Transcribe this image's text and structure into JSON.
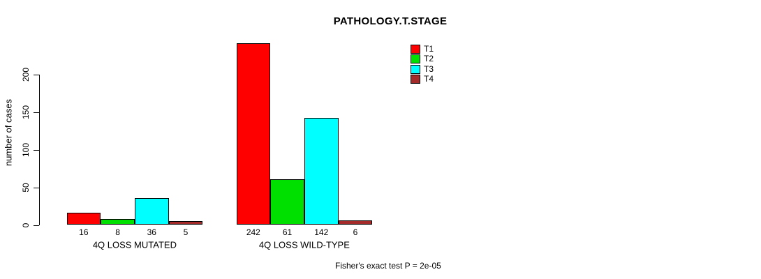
{
  "chart_data": {
    "type": "bar",
    "title": "PATHOLOGY.T.STAGE",
    "ylabel": "number of cases",
    "xlabel": "",
    "categories": [
      "4Q LOSS MUTATED",
      "4Q LOSS WILD-TYPE"
    ],
    "series": [
      {
        "name": "T1",
        "color": "#ff0000",
        "values": [
          16,
          242
        ]
      },
      {
        "name": "T2",
        "color": "#00e000",
        "values": [
          8,
          61
        ]
      },
      {
        "name": "T3",
        "color": "#00ffff",
        "values": [
          36,
          142
        ]
      },
      {
        "name": "T4",
        "color": "#a52a2a",
        "values": [
          5,
          6
        ]
      }
    ],
    "yticks": [
      0,
      50,
      100,
      150,
      200
    ],
    "ylim": [
      0,
      242
    ],
    "grid": false,
    "legend_position": "top-right",
    "legend_entries": [
      "T1",
      "T2",
      "T3",
      "T4"
    ],
    "annotation": "Fisher's exact test P = 2e-05"
  }
}
